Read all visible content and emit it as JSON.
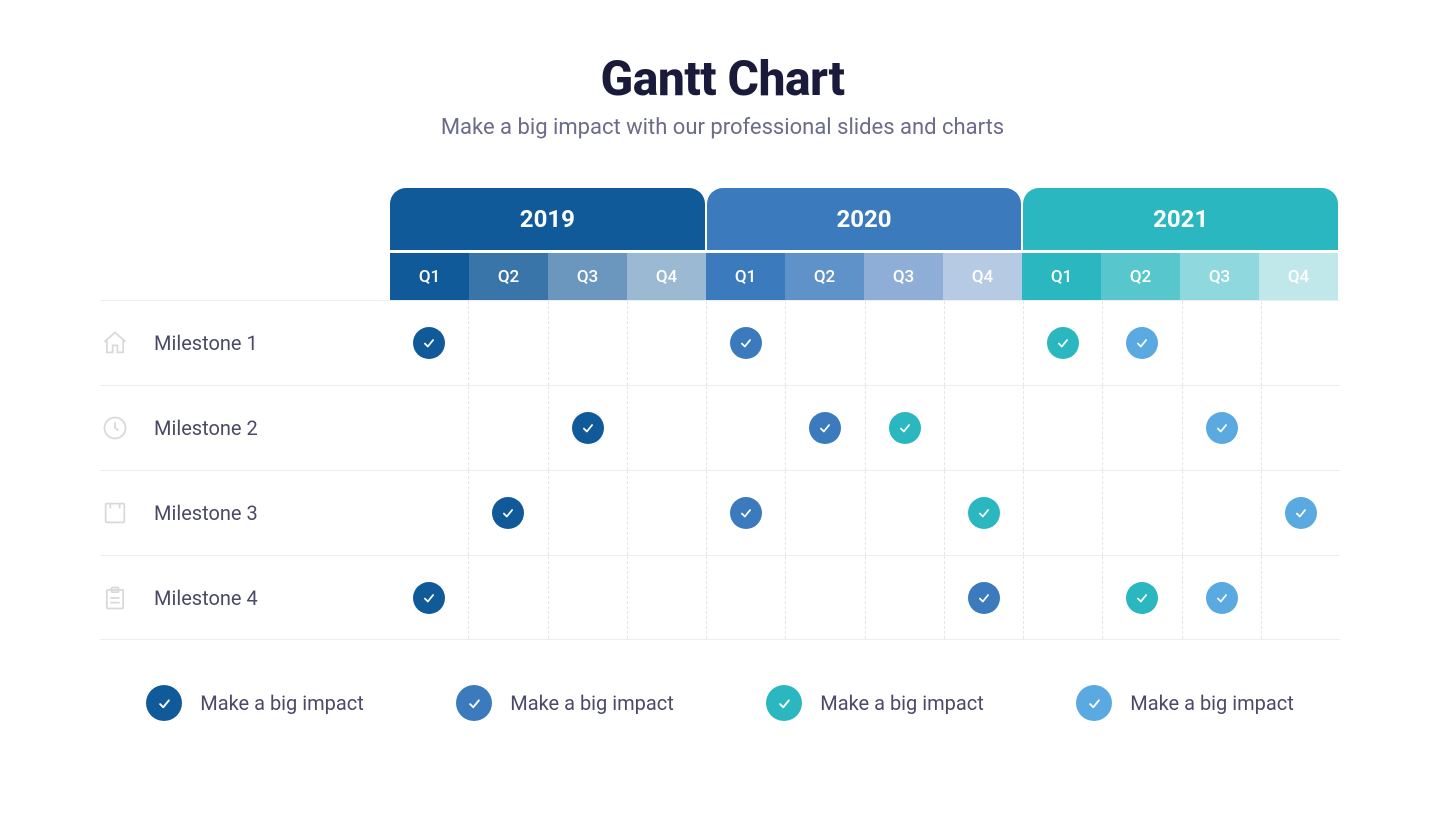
{
  "title": "Gantt Chart",
  "subtitle": "Make a big impact with our professional slides and charts",
  "title_color": "#1a1b3a",
  "subtitle_color": "#6b6b8a",
  "background_color": "#ffffff",
  "years": [
    {
      "label": "2019",
      "tab_color": "#115a9a",
      "quarter_colors": [
        "#115a9a",
        "#3a75aa",
        "#6b97be",
        "#9bb9d2"
      ]
    },
    {
      "label": "2020",
      "tab_color": "#3a7abd",
      "quarter_colors": [
        "#3a7abd",
        "#5e92c9",
        "#8eaed7",
        "#b6cbe3"
      ]
    },
    {
      "label": "2021",
      "tab_color": "#2ab7c0",
      "quarter_colors": [
        "#2ab7c0",
        "#58c6cd",
        "#8fd8dd",
        "#c0e8eb"
      ]
    }
  ],
  "quarter_labels": [
    "Q1",
    "Q2",
    "Q3",
    "Q4"
  ],
  "colors": {
    "darkblue": "#115a9a",
    "midblue": "#3a7abd",
    "teal": "#2ab7c0",
    "lightblue": "#5aa9e0"
  },
  "milestones": [
    {
      "icon": "house",
      "label": "Milestone 1",
      "dots": [
        "darkblue",
        null,
        null,
        null,
        "midblue",
        null,
        null,
        null,
        "teal",
        "lightblue",
        null,
        null
      ]
    },
    {
      "icon": "clock",
      "label": "Milestone 2",
      "dots": [
        null,
        null,
        "darkblue",
        null,
        null,
        "midblue",
        "teal",
        null,
        null,
        null,
        "lightblue",
        null
      ]
    },
    {
      "icon": "box",
      "label": "Milestone 3",
      "dots": [
        null,
        "darkblue",
        null,
        null,
        "midblue",
        null,
        null,
        "teal",
        null,
        null,
        null,
        "lightblue"
      ]
    },
    {
      "icon": "clipboard",
      "label": "Milestone 4",
      "dots": [
        "darkblue",
        null,
        null,
        null,
        null,
        null,
        null,
        "midblue",
        null,
        "teal",
        "lightblue",
        null
      ]
    }
  ],
  "legend": [
    {
      "color": "darkblue",
      "label": "Make a big impact"
    },
    {
      "color": "midblue",
      "label": "Make a big impact"
    },
    {
      "color": "teal",
      "label": "Make a big impact"
    },
    {
      "color": "lightblue",
      "label": "Make a big impact"
    }
  ]
}
